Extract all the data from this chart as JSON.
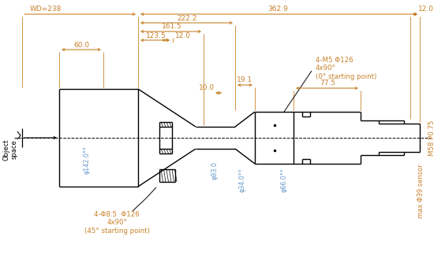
{
  "bg_color": "#ffffff",
  "line_color": "#000000",
  "dim_color": "#c8822a",
  "blue_color": "#6699cc",
  "annotations": {
    "WD238": "WD=238",
    "dim_3629": "362.9",
    "dim_12_top": "12.0",
    "dim_2222": "222.2",
    "dim_1615": "161.5",
    "dim_1235": "123.5",
    "dim_120": "12.0",
    "dim_600": "60.0",
    "dim_191": "19.1",
    "dim_100": "10.0",
    "dim_775": "77.5",
    "dim_phi142": "φ142.0°°",
    "dim_phi93": "φ93.0",
    "dim_phi34": "φ34.0°°",
    "dim_phi66": "φ66.0°°",
    "holes_front": "4-Φ8.5  Φ126\n4x90°\n(45° starting point)",
    "holes_back": "4-M5 Φ126\n4x90°\n(0° starting point)",
    "M58": "M58 P0.75",
    "maxphi39": "max Φ39 sensor",
    "obj_space": "Object\nspace"
  }
}
